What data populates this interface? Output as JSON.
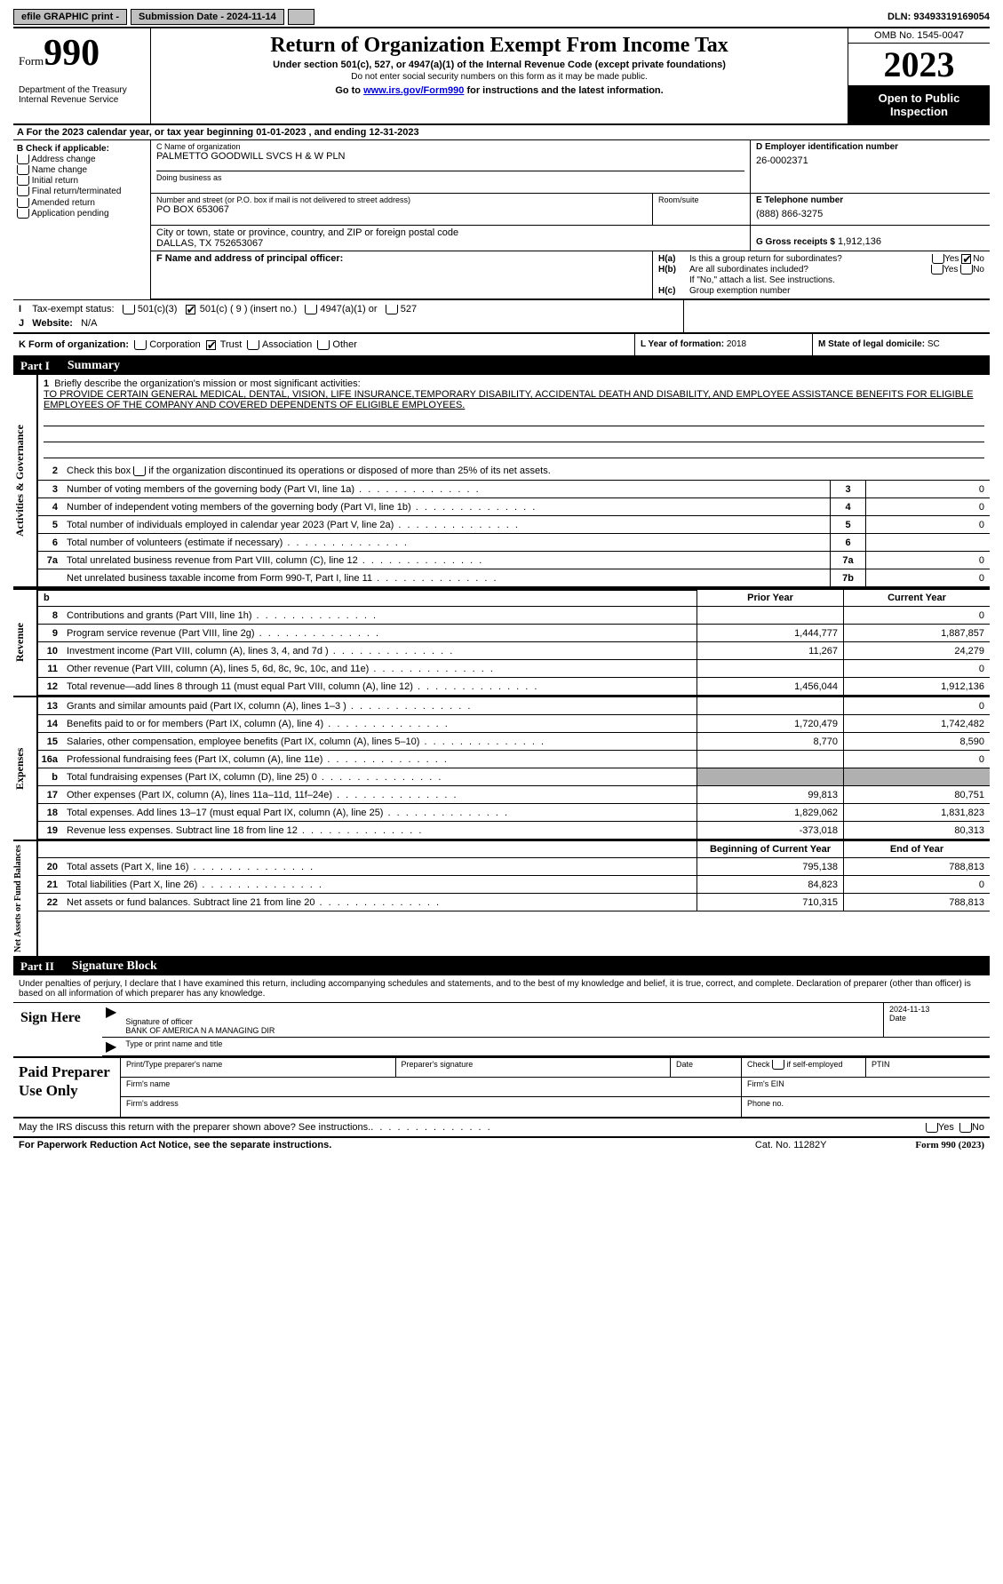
{
  "topbar": {
    "efile": "efile GRAPHIC print -",
    "submission": "Submission Date - 2024-11-14",
    "dln": "DLN: 93493319169054"
  },
  "header": {
    "form_word": "Form",
    "form_num": "990",
    "dept": "Department of the Treasury Internal Revenue Service",
    "title": "Return of Organization Exempt From Income Tax",
    "sub": "Under section 501(c), 527, or 4947(a)(1) of the Internal Revenue Code (except private foundations)",
    "note": "Do not enter social security numbers on this form as it may be made public.",
    "goto_prefix": "Go to ",
    "goto_link": "www.irs.gov/Form990",
    "goto_suffix": " for instructions and the latest information.",
    "omb": "OMB No. 1545-0047",
    "year": "2023",
    "inspection": "Open to Public Inspection"
  },
  "sectionA": "A For the 2023 calendar year, or tax year beginning 01-01-2023   , and ending 12-31-2023",
  "sectionB": {
    "label": "B Check if applicable:",
    "items": [
      "Address change",
      "Name change",
      "Initial return",
      "Final return/terminated",
      "Amended return",
      "Application pending"
    ]
  },
  "sectionC": {
    "name_lbl": "C Name of organization",
    "name": "PALMETTO GOODWILL SVCS H & W PLN",
    "dba_lbl": "Doing business as",
    "addr_lbl": "Number and street (or P.O. box if mail is not delivered to street address)",
    "addr": "PO BOX 653067",
    "room_lbl": "Room/suite",
    "city_lbl": "City or town, state or province, country, and ZIP or foreign postal code",
    "city": "DALLAS, TX  752653067"
  },
  "sectionD": {
    "lbl": "D Employer identification number",
    "val": "26-0002371"
  },
  "sectionE": {
    "lbl": "E Telephone number",
    "val": "(888) 866-3275"
  },
  "sectionF": {
    "lbl": "F  Name and address of principal officer:"
  },
  "sectionG": {
    "lbl": "G Gross receipts $",
    "val": "1,912,136"
  },
  "sectionH": {
    "a": "Is this a group return for subordinates?",
    "b": "Are all subordinates included?",
    "b_note": "If \"No,\" attach a list. See instructions.",
    "c": "Group exemption number"
  },
  "sectionI": {
    "lbl": "Tax-exempt status:",
    "opts": [
      "501(c)(3)",
      "501(c) ( 9 ) (insert no.)",
      "4947(a)(1) or",
      "527"
    ]
  },
  "sectionJ": {
    "lbl": "Website:",
    "val": "N/A"
  },
  "sectionK": {
    "lbl": "K Form of organization:",
    "opts": [
      "Corporation",
      "Trust",
      "Association",
      "Other"
    ]
  },
  "sectionL": {
    "lbl": "L Year of formation:",
    "val": "2018"
  },
  "sectionM": {
    "lbl": "M State of legal domicile:",
    "val": "SC"
  },
  "part1": {
    "label": "Part I",
    "title": "Summary",
    "line1_lbl": "Briefly describe the organization's mission or most significant activities:",
    "line1_text": "TO PROVIDE CERTAIN GENERAL MEDICAL, DENTAL, VISION, LIFE INSURANCE,TEMPORARY DISABILITY, ACCIDENTAL DEATH AND DISABILITY, AND EMPLOYEE ASSISTANCE BENEFITS FOR ELIGIBLE EMPLOYEES OF THE COMPANY AND COVERED DEPENDENTS OF ELIGIBLE EMPLOYEES.",
    "line2": "Check this box        if the organization discontinued its operations or disposed of more than 25% of its net assets.",
    "lines": [
      {
        "n": "3",
        "d": "Number of voting members of the governing body (Part VI, line 1a)",
        "ref": "3",
        "v": "0"
      },
      {
        "n": "4",
        "d": "Number of independent voting members of the governing body (Part VI, line 1b)",
        "ref": "4",
        "v": "0"
      },
      {
        "n": "5",
        "d": "Total number of individuals employed in calendar year 2023 (Part V, line 2a)",
        "ref": "5",
        "v": "0"
      },
      {
        "n": "6",
        "d": "Total number of volunteers (estimate if necessary)",
        "ref": "6",
        "v": ""
      },
      {
        "n": "7a",
        "d": "Total unrelated business revenue from Part VIII, column (C), line 12",
        "ref": "7a",
        "v": "0"
      },
      {
        "n": "",
        "d": "Net unrelated business taxable income from Form 990-T, Part I, line 11",
        "ref": "7b",
        "v": "0"
      }
    ]
  },
  "vtabs": {
    "gov": "Activities & Governance",
    "rev": "Revenue",
    "exp": "Expenses",
    "net": "Net Assets or Fund Balances"
  },
  "fin_headers": {
    "prior": "Prior Year",
    "current": "Current Year",
    "begin": "Beginning of Current Year",
    "end": "End of Year"
  },
  "revenue": [
    {
      "n": "8",
      "d": "Contributions and grants (Part VIII, line 1h)",
      "p": "",
      "c": "0"
    },
    {
      "n": "9",
      "d": "Program service revenue (Part VIII, line 2g)",
      "p": "1,444,777",
      "c": "1,887,857"
    },
    {
      "n": "10",
      "d": "Investment income (Part VIII, column (A), lines 3, 4, and 7d )",
      "p": "11,267",
      "c": "24,279"
    },
    {
      "n": "11",
      "d": "Other revenue (Part VIII, column (A), lines 5, 6d, 8c, 9c, 10c, and 11e)",
      "p": "",
      "c": "0"
    },
    {
      "n": "12",
      "d": "Total revenue—add lines 8 through 11 (must equal Part VIII, column (A), line 12)",
      "p": "1,456,044",
      "c": "1,912,136"
    }
  ],
  "expenses": [
    {
      "n": "13",
      "d": "Grants and similar amounts paid (Part IX, column (A), lines 1–3 )",
      "p": "",
      "c": "0"
    },
    {
      "n": "14",
      "d": "Benefits paid to or for members (Part IX, column (A), line 4)",
      "p": "1,720,479",
      "c": "1,742,482"
    },
    {
      "n": "15",
      "d": "Salaries, other compensation, employee benefits (Part IX, column (A), lines 5–10)",
      "p": "8,770",
      "c": "8,590"
    },
    {
      "n": "16a",
      "d": "Professional fundraising fees (Part IX, column (A), line 11e)",
      "p": "",
      "c": "0"
    },
    {
      "n": "b",
      "d": "Total fundraising expenses (Part IX, column (D), line 25) 0",
      "p": "grey",
      "c": "grey"
    },
    {
      "n": "17",
      "d": "Other expenses (Part IX, column (A), lines 11a–11d, 11f–24e)",
      "p": "99,813",
      "c": "80,751"
    },
    {
      "n": "18",
      "d": "Total expenses. Add lines 13–17 (must equal Part IX, column (A), line 25)",
      "p": "1,829,062",
      "c": "1,831,823"
    },
    {
      "n": "19",
      "d": "Revenue less expenses. Subtract line 18 from line 12",
      "p": "-373,018",
      "c": "80,313"
    }
  ],
  "netassets": [
    {
      "n": "20",
      "d": "Total assets (Part X, line 16)",
      "p": "795,138",
      "c": "788,813"
    },
    {
      "n": "21",
      "d": "Total liabilities (Part X, line 26)",
      "p": "84,823",
      "c": "0"
    },
    {
      "n": "22",
      "d": "Net assets or fund balances. Subtract line 21 from line 20",
      "p": "710,315",
      "c": "788,813"
    }
  ],
  "part2": {
    "label": "Part II",
    "title": "Signature Block"
  },
  "sig": {
    "declaration": "Under penalties of perjury, I declare that I have examined this return, including accompanying schedules and statements, and to the best of my knowledge and belief, it is true, correct, and complete. Declaration of preparer (other than officer) is based on all information of which preparer has any knowledge.",
    "sign_here": "Sign Here",
    "sig_officer": "Signature of officer",
    "date": "Date",
    "date_val": "2024-11-13",
    "officer_name": "BANK OF AMERICA N A  MANAGING DIR",
    "type_name": "Type or print name and title",
    "paid": "Paid Preparer Use Only",
    "print_name": "Print/Type preparer's name",
    "prep_sig": "Preparer's signature",
    "check_self": "Check         if self-employed",
    "ptin": "PTIN",
    "firm_name": "Firm's name",
    "firm_ein": "Firm's EIN",
    "firm_addr": "Firm's address",
    "phone": "Phone no."
  },
  "discuss": "May the IRS discuss this return with the preparer shown above? See instructions.",
  "footer": {
    "paperwork": "For Paperwork Reduction Act Notice, see the separate instructions.",
    "cat": "Cat. No. 11282Y",
    "formref": "Form 990 (2023)"
  }
}
